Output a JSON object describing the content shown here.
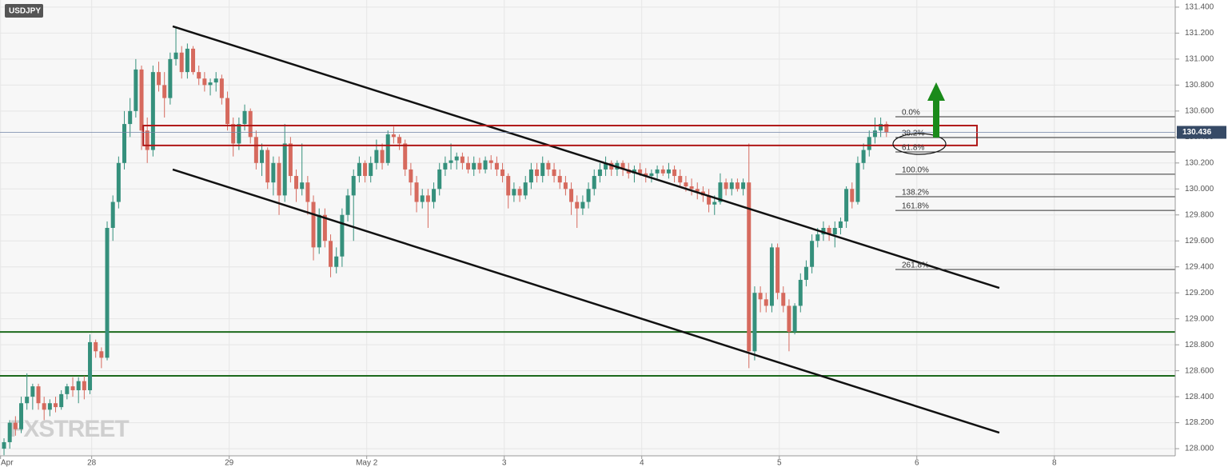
{
  "chart_data": {
    "type": "candlestick",
    "title": "USDJPY",
    "watermark": "FXSTREET",
    "up_color": "#35907c",
    "down_color": "#d66a5e",
    "grid": true,
    "xlim": [
      -0.7,
      204.4
    ],
    "ylim": [
      127.945,
      131.455
    ],
    "xticks": [
      {
        "value": -0.6,
        "label": "Apr"
      },
      {
        "value": 15.3,
        "label": "28"
      },
      {
        "value": 39.3,
        "label": "29"
      },
      {
        "value": 63.3,
        "label": "May  2"
      },
      {
        "value": 87.3,
        "label": "3"
      },
      {
        "value": 111.3,
        "label": "4"
      },
      {
        "value": 135.3,
        "label": "5"
      },
      {
        "value": 159.3,
        "label": "6"
      },
      {
        "value": 183.3,
        "label": "8"
      }
    ],
    "yticks": [
      {
        "value": 128,
        "label": "128.000"
      },
      {
        "value": 128.2,
        "label": "128.200"
      },
      {
        "value": 128.4,
        "label": "128.400"
      },
      {
        "value": 128.6,
        "label": "128.600"
      },
      {
        "value": 128.8,
        "label": "128.800"
      },
      {
        "value": 129,
        "label": "129.000"
      },
      {
        "value": 129.2,
        "label": "129.200"
      },
      {
        "value": 129.4,
        "label": "129.400"
      },
      {
        "value": 129.6,
        "label": "129.600"
      },
      {
        "value": 129.8,
        "label": "129.800"
      },
      {
        "value": 130,
        "label": "130.000"
      },
      {
        "value": 130.2,
        "label": "130.200"
      },
      {
        "value": 130.4,
        "label": "130.400"
      },
      {
        "value": 130.6,
        "label": "130.600"
      },
      {
        "value": 130.8,
        "label": "130.800"
      },
      {
        "value": 131,
        "label": "131.000"
      },
      {
        "value": 131.2,
        "label": "131.200"
      },
      {
        "value": 131.4,
        "label": "131.400"
      }
    ],
    "current_price": 130.436,
    "candles": [
      [
        128.0,
        128.08,
        127.95,
        128.05
      ],
      [
        128.05,
        128.22,
        128.0,
        128.2
      ],
      [
        128.2,
        128.25,
        128.1,
        128.15
      ],
      [
        128.15,
        128.4,
        128.12,
        128.35
      ],
      [
        128.35,
        128.58,
        128.3,
        128.4
      ],
      [
        128.4,
        128.5,
        128.3,
        128.48
      ],
      [
        128.48,
        128.5,
        128.3,
        128.35
      ],
      [
        128.35,
        128.4,
        128.22,
        128.3
      ],
      [
        128.3,
        128.38,
        128.25,
        128.35
      ],
      [
        128.35,
        128.4,
        128.28,
        128.32
      ],
      [
        128.32,
        128.45,
        128.3,
        128.42
      ],
      [
        128.42,
        128.5,
        128.38,
        128.48
      ],
      [
        128.48,
        128.55,
        128.4,
        128.45
      ],
      [
        128.45,
        128.55,
        128.35,
        128.52
      ],
      [
        128.52,
        128.56,
        128.38,
        128.45
      ],
      [
        128.45,
        128.88,
        128.42,
        128.82
      ],
      [
        128.82,
        128.84,
        128.7,
        128.75
      ],
      [
        128.75,
        128.78,
        128.62,
        128.7
      ],
      [
        128.7,
        129.75,
        128.68,
        129.7
      ],
      [
        129.7,
        129.95,
        129.6,
        129.9
      ],
      [
        129.9,
        130.25,
        129.85,
        130.2
      ],
      [
        130.2,
        130.6,
        130.15,
        130.5
      ],
      [
        130.5,
        130.7,
        130.4,
        130.6
      ],
      [
        130.6,
        131.0,
        130.55,
        130.92
      ],
      [
        130.92,
        130.95,
        130.3,
        130.45
      ],
      [
        130.45,
        130.55,
        130.2,
        130.3
      ],
      [
        130.3,
        130.95,
        130.25,
        130.9
      ],
      [
        130.9,
        130.98,
        130.75,
        130.8
      ],
      [
        130.8,
        130.9,
        130.55,
        130.7
      ],
      [
        130.7,
        131.05,
        130.65,
        131.0
      ],
      [
        131.0,
        131.25,
        130.95,
        131.05
      ],
      [
        131.05,
        131.1,
        130.85,
        130.9
      ],
      [
        130.9,
        131.12,
        130.85,
        131.08
      ],
      [
        131.08,
        131.1,
        130.88,
        130.9
      ],
      [
        130.9,
        130.95,
        130.8,
        130.85
      ],
      [
        130.85,
        130.9,
        130.75,
        130.8
      ],
      [
        130.8,
        130.85,
        130.72,
        130.82
      ],
      [
        130.82,
        130.9,
        130.75,
        130.85
      ],
      [
        130.85,
        130.88,
        130.65,
        130.7
      ],
      [
        130.7,
        130.75,
        130.45,
        130.5
      ],
      [
        130.5,
        130.55,
        130.25,
        130.35
      ],
      [
        130.35,
        130.55,
        130.3,
        130.5
      ],
      [
        130.5,
        130.65,
        130.45,
        130.6
      ],
      [
        130.6,
        130.62,
        130.35,
        130.4
      ],
      [
        130.4,
        130.45,
        130.15,
        130.2
      ],
      [
        130.2,
        130.35,
        130.1,
        130.3
      ],
      [
        130.3,
        130.32,
        130.0,
        130.05
      ],
      [
        130.05,
        130.25,
        129.95,
        130.2
      ],
      [
        130.2,
        130.25,
        129.8,
        129.95
      ],
      [
        129.95,
        130.5,
        129.9,
        130.35
      ],
      [
        130.35,
        130.4,
        130.05,
        130.1
      ],
      [
        130.1,
        130.15,
        129.9,
        130.0
      ],
      [
        130.0,
        130.35,
        129.95,
        130.05
      ],
      [
        130.05,
        130.1,
        129.8,
        129.9
      ],
      [
        129.9,
        129.95,
        129.45,
        129.55
      ],
      [
        129.55,
        129.85,
        129.5,
        129.8
      ],
      [
        129.8,
        129.85,
        129.55,
        129.6
      ],
      [
        129.6,
        129.65,
        129.32,
        129.4
      ],
      [
        129.4,
        129.55,
        129.35,
        129.48
      ],
      [
        129.48,
        129.85,
        129.4,
        129.8
      ],
      [
        129.8,
        130.0,
        129.75,
        129.95
      ],
      [
        129.95,
        130.15,
        129.6,
        130.1
      ],
      [
        130.1,
        130.25,
        130.05,
        130.2
      ],
      [
        130.2,
        130.22,
        130.05,
        130.1
      ],
      [
        130.1,
        130.25,
        130.05,
        130.2
      ],
      [
        130.2,
        130.38,
        130.15,
        130.3
      ],
      [
        130.3,
        130.35,
        130.15,
        130.2
      ],
      [
        130.2,
        130.45,
        130.18,
        130.42
      ],
      [
        130.42,
        130.48,
        130.35,
        130.4
      ],
      [
        130.4,
        130.42,
        130.3,
        130.35
      ],
      [
        130.35,
        130.38,
        130.1,
        130.15
      ],
      [
        130.15,
        130.2,
        129.95,
        130.05
      ],
      [
        130.05,
        130.1,
        129.82,
        129.9
      ],
      [
        129.9,
        130.0,
        129.85,
        129.95
      ],
      [
        129.95,
        130.0,
        129.7,
        129.9
      ],
      [
        129.9,
        130.05,
        129.85,
        130.0
      ],
      [
        130.0,
        130.2,
        129.95,
        130.15
      ],
      [
        130.15,
        130.25,
        130.1,
        130.2
      ],
      [
        130.2,
        130.35,
        130.15,
        130.22
      ],
      [
        130.22,
        130.28,
        130.15,
        130.25
      ],
      [
        130.25,
        130.28,
        130.15,
        130.2
      ],
      [
        130.2,
        130.25,
        130.12,
        130.15
      ],
      [
        130.15,
        130.25,
        130.1,
        130.2
      ],
      [
        130.2,
        130.24,
        130.12,
        130.15
      ],
      [
        130.15,
        130.25,
        130.12,
        130.22
      ],
      [
        130.22,
        130.26,
        130.15,
        130.2
      ],
      [
        130.2,
        130.25,
        130.1,
        130.15
      ],
      [
        130.15,
        130.2,
        130.05,
        130.1
      ],
      [
        130.1,
        130.12,
        129.85,
        129.95
      ],
      [
        129.95,
        130.05,
        129.9,
        130.0
      ],
      [
        130.0,
        130.02,
        129.9,
        129.95
      ],
      [
        129.95,
        130.1,
        129.92,
        130.05
      ],
      [
        130.05,
        130.2,
        130.0,
        130.15
      ],
      [
        130.15,
        130.2,
        130.05,
        130.1
      ],
      [
        130.1,
        130.25,
        130.05,
        130.2
      ],
      [
        130.2,
        130.22,
        130.1,
        130.15
      ],
      [
        130.15,
        130.2,
        130.05,
        130.1
      ],
      [
        130.1,
        130.15,
        130.0,
        130.05
      ],
      [
        130.05,
        130.1,
        129.95,
        130.0
      ],
      [
        130.0,
        130.05,
        129.8,
        129.9
      ],
      [
        129.9,
        129.95,
        129.7,
        129.85
      ],
      [
        129.85,
        129.95,
        129.8,
        129.9
      ],
      [
        129.9,
        130.05,
        129.85,
        130.0
      ],
      [
        130.0,
        130.15,
        129.95,
        130.1
      ],
      [
        130.1,
        130.2,
        130.05,
        130.15
      ],
      [
        130.15,
        130.25,
        130.1,
        130.2
      ],
      [
        130.2,
        130.22,
        130.1,
        130.15
      ],
      [
        130.15,
        130.22,
        130.1,
        130.2
      ],
      [
        130.2,
        130.22,
        130.1,
        130.15
      ],
      [
        130.15,
        130.2,
        130.08,
        130.12
      ],
      [
        130.12,
        130.18,
        130.05,
        130.15
      ],
      [
        130.15,
        130.2,
        130.1,
        130.12
      ],
      [
        130.12,
        130.16,
        130.05,
        130.1
      ],
      [
        130.1,
        130.15,
        130.05,
        130.12
      ],
      [
        130.12,
        130.18,
        130.08,
        130.15
      ],
      [
        130.15,
        130.18,
        130.1,
        130.12
      ],
      [
        130.12,
        130.2,
        130.08,
        130.15
      ],
      [
        130.15,
        130.18,
        130.05,
        130.1
      ],
      [
        130.1,
        130.15,
        130.02,
        130.05
      ],
      [
        130.05,
        130.1,
        129.98,
        130.02
      ],
      [
        130.02,
        130.08,
        129.95,
        130.0
      ],
      [
        130.0,
        130.05,
        129.92,
        129.98
      ],
      [
        129.98,
        130.02,
        129.9,
        129.95
      ],
      [
        129.95,
        130.0,
        129.82,
        129.88
      ],
      [
        129.88,
        129.95,
        129.8,
        129.9
      ],
      [
        129.9,
        130.12,
        129.88,
        130.05
      ],
      [
        130.05,
        130.08,
        129.95,
        130.0
      ],
      [
        130.0,
        130.08,
        129.95,
        130.05
      ],
      [
        130.05,
        130.08,
        129.98,
        130.0
      ],
      [
        130.0,
        130.08,
        129.95,
        130.05
      ],
      [
        130.05,
        130.35,
        128.62,
        128.75
      ],
      [
        128.75,
        129.25,
        128.68,
        129.2
      ],
      [
        129.2,
        129.25,
        129.05,
        129.15
      ],
      [
        129.15,
        129.2,
        129.05,
        129.1
      ],
      [
        129.1,
        129.58,
        129.05,
        129.55
      ],
      [
        129.55,
        129.58,
        129.15,
        129.2
      ],
      [
        129.2,
        129.25,
        129.05,
        129.1
      ],
      [
        129.1,
        129.15,
        128.75,
        128.9
      ],
      [
        128.9,
        129.12,
        128.88,
        129.1
      ],
      [
        129.1,
        129.35,
        129.05,
        129.3
      ],
      [
        129.3,
        129.45,
        129.25,
        129.4
      ],
      [
        129.4,
        129.65,
        129.35,
        129.6
      ],
      [
        129.6,
        129.7,
        129.55,
        129.65
      ],
      [
        129.65,
        129.75,
        129.6,
        129.7
      ],
      [
        129.7,
        129.72,
        129.6,
        129.65
      ],
      [
        129.65,
        129.75,
        129.55,
        129.7
      ],
      [
        129.7,
        129.78,
        129.65,
        129.75
      ],
      [
        129.75,
        130.02,
        129.7,
        130.0
      ],
      [
        130.0,
        130.05,
        129.85,
        129.9
      ],
      [
        129.9,
        130.25,
        129.88,
        130.2
      ],
      [
        130.2,
        130.35,
        130.15,
        130.3
      ],
      [
        130.3,
        130.45,
        130.25,
        130.4
      ],
      [
        130.4,
        130.55,
        130.35,
        130.45
      ],
      [
        130.45,
        130.55,
        130.4,
        130.5
      ],
      [
        130.5,
        130.52,
        130.4,
        130.436
      ]
    ],
    "fib_levels": [
      {
        "value": 130.556,
        "label": "0.0%"
      },
      {
        "value": 130.396,
        "label": "38.2%"
      },
      {
        "value": 130.285,
        "label": "61.8%"
      },
      {
        "value": 130.113,
        "label": "100.0%"
      },
      {
        "value": 129.94,
        "label": "138.2%"
      },
      {
        "value": 129.835,
        "label": "161.8%"
      },
      {
        "value": 129.38,
        "label": "261.8%"
      }
    ],
    "support_levels": [
      128.899,
      128.561
    ],
    "trendlines": [
      {
        "x": [
          29.44,
          173.7
        ],
        "y": [
          131.252,
          129.238
        ]
      },
      {
        "x": [
          29.44,
          173.7
        ],
        "y": [
          130.15,
          128.123
        ]
      }
    ],
    "resistance_zone": {
      "x": [
        24.3,
        169.8
      ],
      "y": [
        130.335,
        130.488
      ]
    }
  }
}
